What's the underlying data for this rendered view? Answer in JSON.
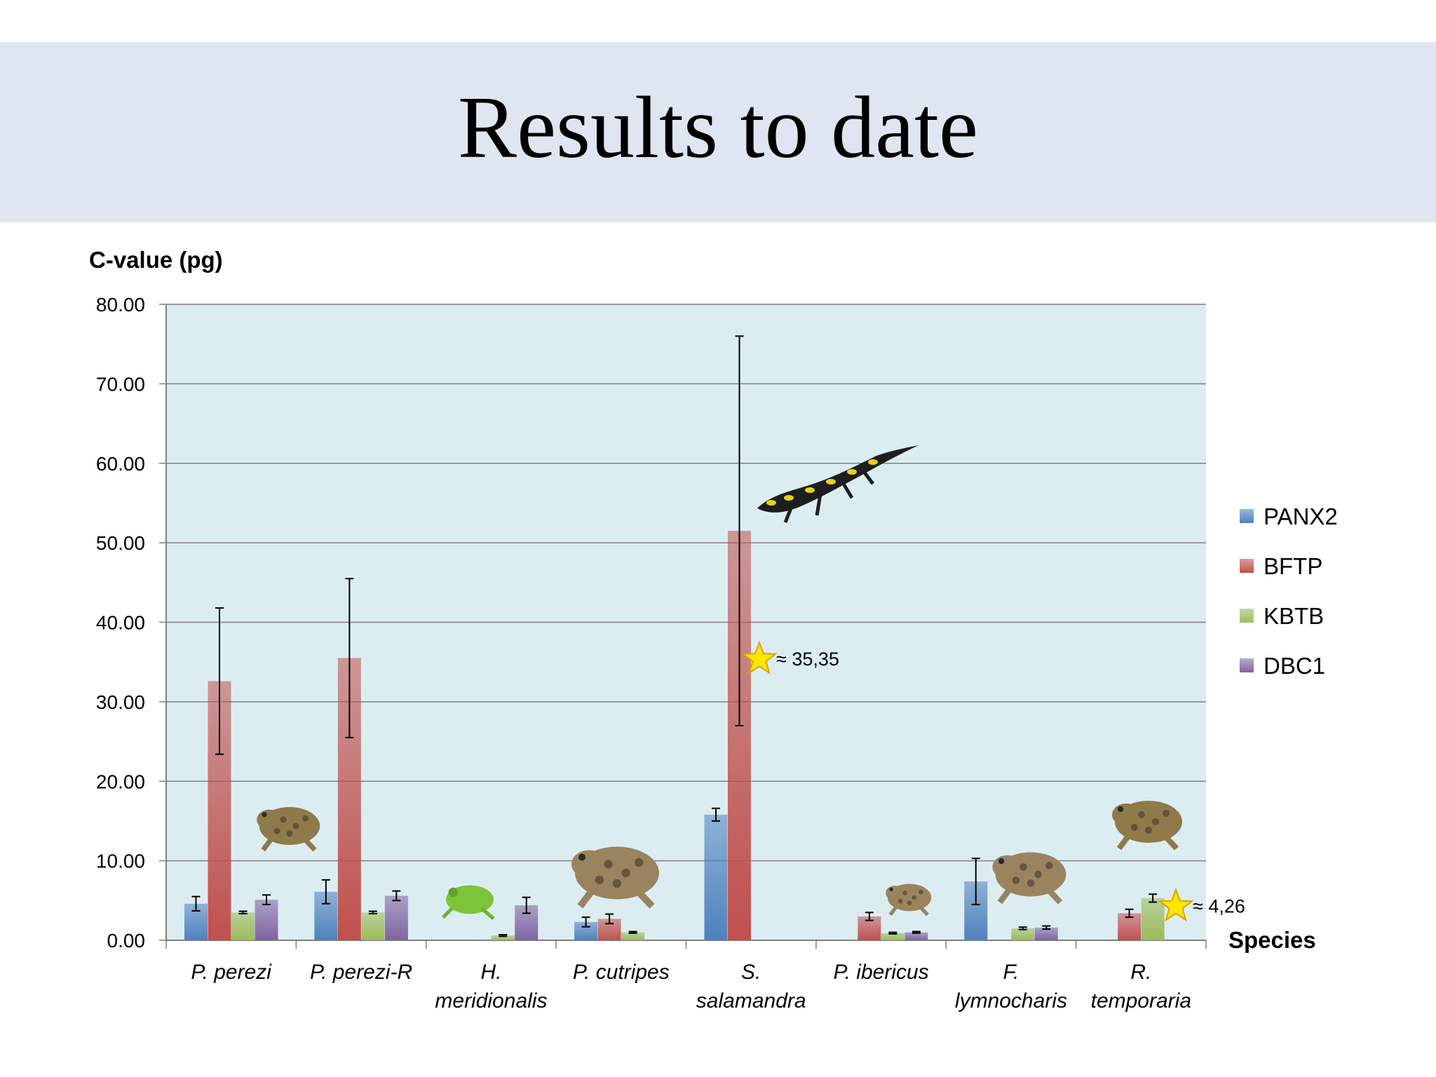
{
  "slide": {
    "title": "Results to date"
  },
  "chart_data": {
    "type": "bar",
    "ylabel": "C-value (pg)",
    "xlabel": "Species",
    "ylim": [
      0,
      80
    ],
    "yticks": [
      "0.00",
      "10.00",
      "20.00",
      "30.00",
      "40.00",
      "50.00",
      "60.00",
      "70.00",
      "80.00"
    ],
    "grid": true,
    "legend_position": "right",
    "categories": [
      [
        "P. perezi"
      ],
      [
        "P. perezi-R"
      ],
      [
        "H.",
        "meridionalis"
      ],
      [
        "P. cutripes"
      ],
      [
        "S.",
        "salamandra"
      ],
      [
        "P. ibericus"
      ],
      [
        "F.",
        "lymnocharis"
      ],
      [
        "R.",
        "temporaria"
      ]
    ],
    "series": [
      {
        "name": "PANX2",
        "color": "#4f81bd",
        "values": [
          4.6,
          6.1,
          null,
          2.3,
          15.8,
          null,
          7.4,
          null
        ],
        "errors": [
          0.9,
          1.5,
          null,
          0.6,
          0.8,
          null,
          2.9,
          null
        ]
      },
      {
        "name": "BFTP",
        "color": "#c0504d",
        "values": [
          32.6,
          35.5,
          null,
          2.7,
          51.5,
          3.0,
          null,
          3.4
        ],
        "errors": [
          9.2,
          10.0,
          null,
          0.6,
          24.5,
          0.5,
          null,
          0.5
        ]
      },
      {
        "name": "KBTB",
        "color": "#9bbb59",
        "values": [
          3.5,
          3.5,
          0.6,
          1.0,
          null,
          0.9,
          1.5,
          5.3
        ],
        "errors": [
          0.15,
          0.15,
          0.1,
          0.1,
          null,
          0.1,
          0.15,
          0.5
        ]
      },
      {
        "name": "DBC1",
        "color": "#8064a2",
        "values": [
          5.1,
          5.6,
          4.4,
          null,
          null,
          1.0,
          1.6,
          null
        ],
        "errors": [
          0.6,
          0.6,
          1.0,
          null,
          null,
          0.1,
          0.2,
          null
        ]
      }
    ],
    "annotations": [
      {
        "label": "≈ 35,35",
        "category_index": 4,
        "value": 35.35,
        "marker": "star"
      },
      {
        "label": "≈ 4,26",
        "category_index": 7,
        "value": 4.26,
        "marker": "star"
      }
    ],
    "animal_icons": [
      "frog",
      "frog",
      "tree-frog",
      "toad",
      "salamander",
      "toad",
      "toad",
      "frog"
    ],
    "colors": {
      "plot_background": "#dcedf2",
      "grid": "#808080",
      "star": "#ffe600",
      "star_stroke": "#d9a400"
    }
  }
}
